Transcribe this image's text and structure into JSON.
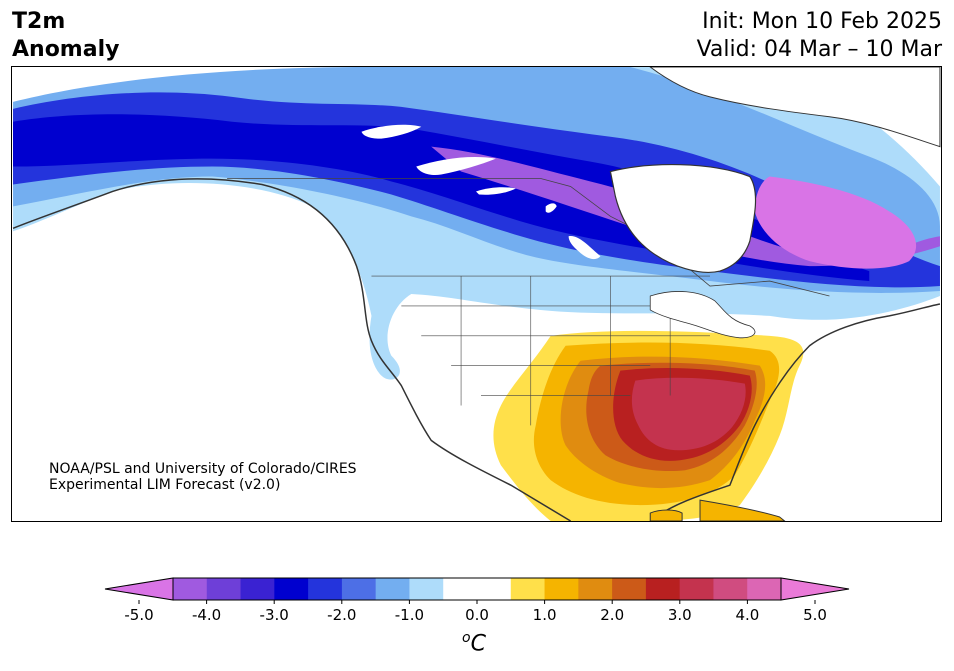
{
  "header": {
    "title_line1": "T2m",
    "title_line2": "Anomaly",
    "init": "Init: Mon 10 Feb 2025",
    "valid": "Valid: 04 Mar – 10 Mar"
  },
  "credit": {
    "line1": "NOAA/PSL and University of Colorado/CIRES",
    "line2": "Experimental LIM Forecast (v2.0)"
  },
  "colorbar": {
    "unit_symbol": "o",
    "unit_letter": "C",
    "ticks": [
      "-5.0",
      "-4.0",
      "-3.0",
      "-2.0",
      "-1.0",
      "0.0",
      "1.0",
      "2.0",
      "3.0",
      "4.0",
      "5.0"
    ],
    "colors": [
      "#d974e6",
      "#a05ae0",
      "#6e3fd8",
      "#3a22d2",
      "#0000cf",
      "#2434dc",
      "#4d6fe6",
      "#73aef0",
      "#aedcfa",
      "#ffffff",
      "#ffffff",
      "#ffe04a",
      "#f5b400",
      "#e08c10",
      "#cc5a18",
      "#b82020",
      "#c4334e",
      "#d04c80",
      "#dc66b4",
      "#ea7ad8"
    ],
    "under_color": "#d974e6",
    "over_color": "#ea7ad8"
  }
}
